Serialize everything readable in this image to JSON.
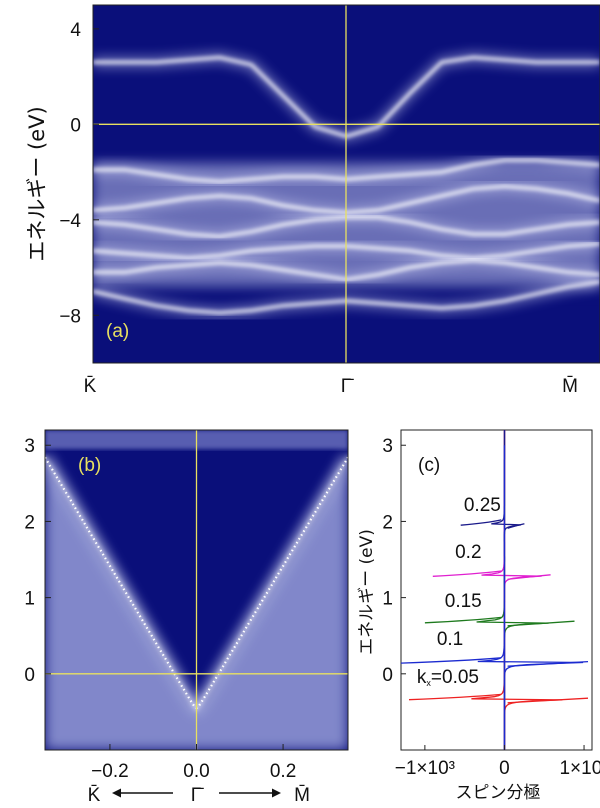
{
  "chart_data": [
    {
      "id": "a",
      "type": "heatmap",
      "panel_label": "(a)",
      "ylabel": "エネルギー (eV)",
      "ylim": [
        -10,
        5
      ],
      "yticks": [
        4,
        0,
        -4,
        -8
      ],
      "xtick_labels": [
        "K̄",
        "Γ̄",
        "M̄"
      ],
      "guide_lines": {
        "y": 0,
        "x": "Γ̄"
      },
      "colors": {
        "background": "#0a0f7a",
        "band": "#ffffff",
        "guide": "#e8e060",
        "label": "#e8e060"
      },
      "bands_ev": [
        [
          2.6,
          2.6,
          2.6,
          2.7,
          2.8,
          2.5,
          1.2,
          -0.1,
          -0.5,
          -0.1,
          1.3,
          2.6,
          2.8,
          2.7,
          2.6,
          2.6,
          2.6
        ],
        [
          -1.9,
          -1.9,
          -2.1,
          -2.3,
          -2.4,
          -2.3,
          -2.2,
          -2.2,
          -2.3,
          -2.2,
          -2.1,
          -2.0,
          -1.7,
          -1.5,
          -1.5,
          -1.6,
          -1.7
        ],
        [
          -3.6,
          -3.5,
          -3.3,
          -3.1,
          -3.0,
          -3.1,
          -3.4,
          -3.6,
          -3.7,
          -3.6,
          -3.3,
          -3.0,
          -2.7,
          -2.6,
          -2.7,
          -2.9,
          -3.2
        ],
        [
          -4.1,
          -4.2,
          -4.4,
          -4.6,
          -4.7,
          -4.5,
          -4.2,
          -4.0,
          -3.9,
          -3.9,
          -4.1,
          -4.4,
          -4.6,
          -4.6,
          -4.4,
          -4.2,
          -4.1
        ],
        [
          -5.3,
          -5.4,
          -5.5,
          -5.6,
          -5.5,
          -5.3,
          -5.2,
          -5.1,
          -5.1,
          -5.2,
          -5.3,
          -5.5,
          -5.6,
          -5.5,
          -5.3,
          -5.1,
          -5.0
        ],
        [
          -6.2,
          -6.2,
          -6.0,
          -5.9,
          -5.8,
          -5.9,
          -6.1,
          -6.3,
          -6.5,
          -6.3,
          -6.0,
          -5.8,
          -5.7,
          -5.8,
          -6.0,
          -6.2,
          -6.3
        ],
        [
          -7.0,
          -7.3,
          -7.6,
          -7.8,
          -7.9,
          -7.8,
          -7.6,
          -7.5,
          -7.4,
          -7.5,
          -7.6,
          -7.7,
          -7.6,
          -7.4,
          -7.1,
          -6.8,
          -6.6
        ]
      ]
    },
    {
      "id": "b",
      "type": "heatmap",
      "panel_label": "(b)",
      "xlim": [
        -0.35,
        0.35
      ],
      "ylim": [
        -1.0,
        3.2
      ],
      "xticks": [
        -0.2,
        0.0,
        0.2
      ],
      "yticks": [
        0,
        1,
        2,
        3
      ],
      "xlabel_left": "K̄",
      "xlabel_center": "Γ̄",
      "xlabel_right": "M̄",
      "guide_lines": {
        "x": 0.0,
        "y": 0.0
      },
      "colors": {
        "background": "#0a0f7a",
        "band": "#ffffff",
        "guide": "#e8e060",
        "label": "#e8e060"
      },
      "dirac_cone": {
        "k0": 0.0,
        "e0": -0.45,
        "a": 0.035,
        "b": 9.5
      }
    },
    {
      "id": "c",
      "type": "line",
      "panel_label": "(c)",
      "xlabel": "スピン分極",
      "ylabel": "エネルギー (eV)",
      "xlim": [
        -1300,
        1100
      ],
      "ylim": [
        -1.0,
        3.2
      ],
      "xtick_labels": [
        "−1×10³",
        "0",
        "1×10³"
      ],
      "xtick_values": [
        -1000,
        0,
        1000
      ],
      "yticks": [
        0,
        1,
        2,
        3
      ],
      "series": [
        {
          "name": "0.05",
          "label_prefix": "k",
          "label_sub": "x",
          "label_eq": "=",
          "color": "#ee2222",
          "energy": -0.33,
          "neg_amp": -1200,
          "pos_amp": 1050,
          "label_x": -1100,
          "label_y": -0.12
        },
        {
          "name": "0.1",
          "color": "#1c2bd0",
          "energy": 0.15,
          "neg_amp": -1300,
          "pos_amp": 1050,
          "label_x": -850,
          "label_y": 0.38
        },
        {
          "name": "0.15",
          "color": "#1e7a1e",
          "energy": 0.68,
          "neg_amp": -1000,
          "pos_amp": 880,
          "label_x": -750,
          "label_y": 0.88
        },
        {
          "name": "0.2",
          "color": "#e020d0",
          "energy": 1.29,
          "neg_amp": -900,
          "pos_amp": 580,
          "label_x": -620,
          "label_y": 1.52
        },
        {
          "name": "0.25",
          "color": "#1a1a8a",
          "energy": 1.96,
          "neg_amp": -550,
          "pos_amp": 250,
          "label_x": -510,
          "label_y": 2.14
        }
      ]
    }
  ]
}
